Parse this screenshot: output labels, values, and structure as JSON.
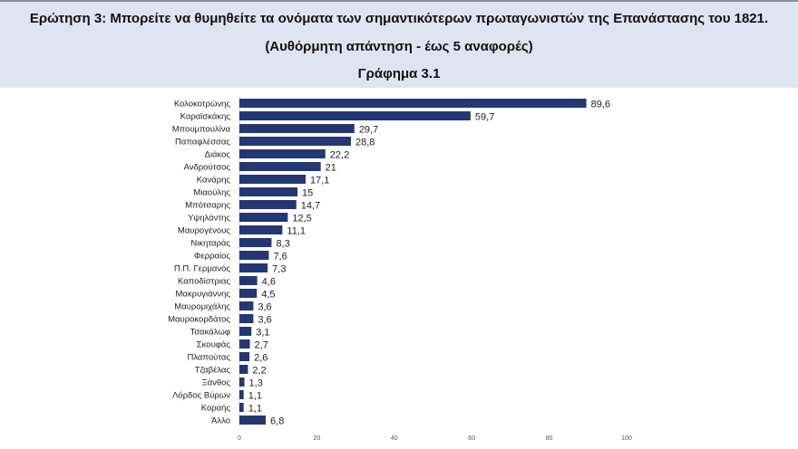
{
  "header": {
    "title": "Ερώτηση 3: Μπορείτε να θυμηθείτε τα ονόματα των σημαντικότερων πρωταγωνιστών της Επανάστασης του 1821.",
    "subtitle": "(Αυθόρμητη απάντηση - έως 5 αναφορές)",
    "chart_label": "Γράφημα 3.1"
  },
  "chart_data": {
    "type": "bar",
    "orientation": "horizontal",
    "title": "Γράφημα 3.1",
    "categories": [
      "Κολοκοτρώνης",
      "Καραϊσκάκης",
      "Μπουμπουλίνα",
      "Παπαφλέσσας",
      "Διάκος",
      "Ανδρούτσος",
      "Κανάρης",
      "Μιαούλης",
      "Μπότσαρης",
      "Υψηλάντης",
      "Μαυρογένους",
      "Νικηταράς",
      "Φερραίος",
      "Π.Π. Γερμανός",
      "Καποδίστριας",
      "Μακρυγιάννης",
      "Μαυρομιχάλης",
      "Μαυροκορδάτος",
      "Τσακάλωφ",
      "Σκουφάς",
      "Πλαπούτας",
      "Τζαβέλας",
      "Ξάνθος",
      "Λόρδος Βύρων",
      "Κοραής",
      "Άλλο"
    ],
    "values": [
      89.6,
      59.7,
      29.7,
      28.8,
      22.2,
      21,
      17.1,
      15,
      14.7,
      12.5,
      11.1,
      8.3,
      7.6,
      7.3,
      4.6,
      4.5,
      3.6,
      3.6,
      3.1,
      2.7,
      2.6,
      2.2,
      1.3,
      1.1,
      1.1,
      6.8
    ],
    "value_labels": [
      "89,6",
      "59,7",
      "29,7",
      "28,8",
      "22,2",
      "21",
      "17,1",
      "15",
      "14,7",
      "12,5",
      "11,1",
      "8,3",
      "7,6",
      "7,3",
      "4,6",
      "4,5",
      "3,6",
      "3,6",
      "3,1",
      "2,7",
      "2,6",
      "2,2",
      "1,3",
      "1,1",
      "1,1",
      "6,8"
    ],
    "xticks": [
      0,
      20,
      40,
      60,
      80,
      100
    ],
    "xlim": [
      0,
      100
    ],
    "grid": false,
    "bar_color": "#253773"
  }
}
